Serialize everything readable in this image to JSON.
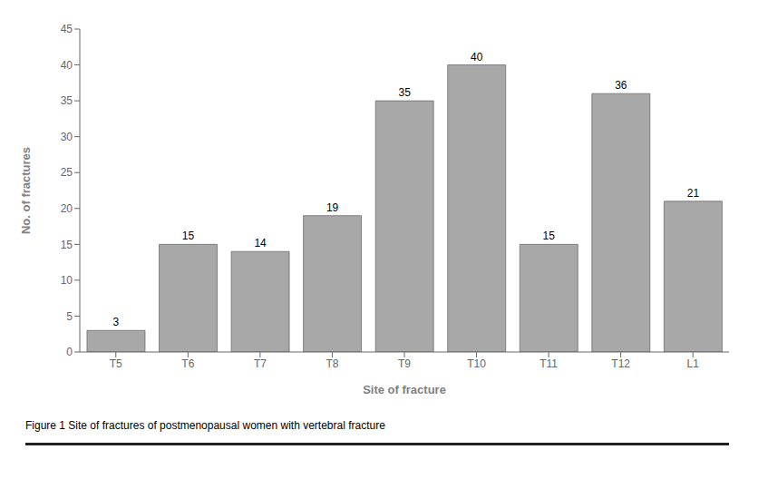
{
  "chart_data": {
    "type": "bar",
    "title": "Figure 1 Site of fractures of postmenopausal women with vertebral fracture",
    "x_label": "Site of fracture",
    "y_label": "No. of fractures",
    "categories": [
      "T5",
      "T6",
      "T7",
      "T8",
      "T9",
      "T10",
      "T11",
      "T12",
      "L1"
    ],
    "values": [
      3,
      15,
      14,
      19,
      35,
      40,
      15,
      36,
      21
    ],
    "color": "#a8a8a8",
    "ylim": [
      0,
      45
    ],
    "yticks": [
      0,
      5,
      10,
      15,
      20,
      25,
      30,
      35,
      40,
      45
    ],
    "grid": false,
    "data_labels": true
  }
}
